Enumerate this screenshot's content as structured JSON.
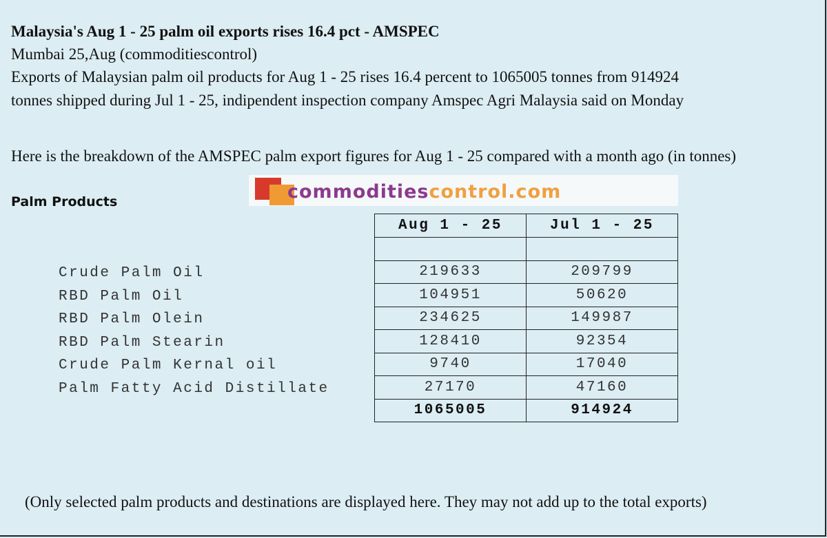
{
  "article": {
    "headline": "Malaysia's Aug 1 - 25 palm oil exports  rises 16.4 pct - AMSPEC",
    "dateline": "Mumbai 25,Aug (commoditiescontrol)",
    "body_line1": "Exports of  Malaysian palm oil products  for Aug 1 - 25 rises 16.4 percent to 1065005 tonnes from 914924",
    "body_line2": "tonnes shipped during   Jul 1 - 25, indipendent inspection company Amspec Agri Malaysia said on Monday",
    "breakdown_intro": "Here is the breakdown of the AMSPEC palm export figures for Aug 1 - 25 compared with a month ago (in tonnes)",
    "section_title": "Palm Products",
    "footnote": "(Only selected palm products and destinations  are displayed here. They may not add up to the total exports)"
  },
  "logo": {
    "part1": "commodities",
    "part2": "control.com",
    "colors": {
      "part1": "#8c3a8e",
      "part2": "#f0a040"
    }
  },
  "table": {
    "headers": [
      "Aug 1 - 25",
      "Jul 1 - 25"
    ],
    "rows": [
      {
        "product": "Crude Palm Oil",
        "aug": "219633",
        "jul": "209799"
      },
      {
        "product": "RBD Palm Oil",
        "aug": "104951",
        "jul": "50620"
      },
      {
        "product": "RBD Palm Olein",
        "aug": "234625",
        "jul": "149987"
      },
      {
        "product": "RBD Palm Stearin",
        "aug": "128410",
        "jul": "92354"
      },
      {
        "product": "Crude Palm Kernal oil",
        "aug": "9740",
        "jul": "17040"
      },
      {
        "product": "Palm Fatty Acid Distillate",
        "aug": "27170",
        "jul": "47160"
      }
    ],
    "total": {
      "aug": "1065005",
      "jul": "914924"
    }
  }
}
